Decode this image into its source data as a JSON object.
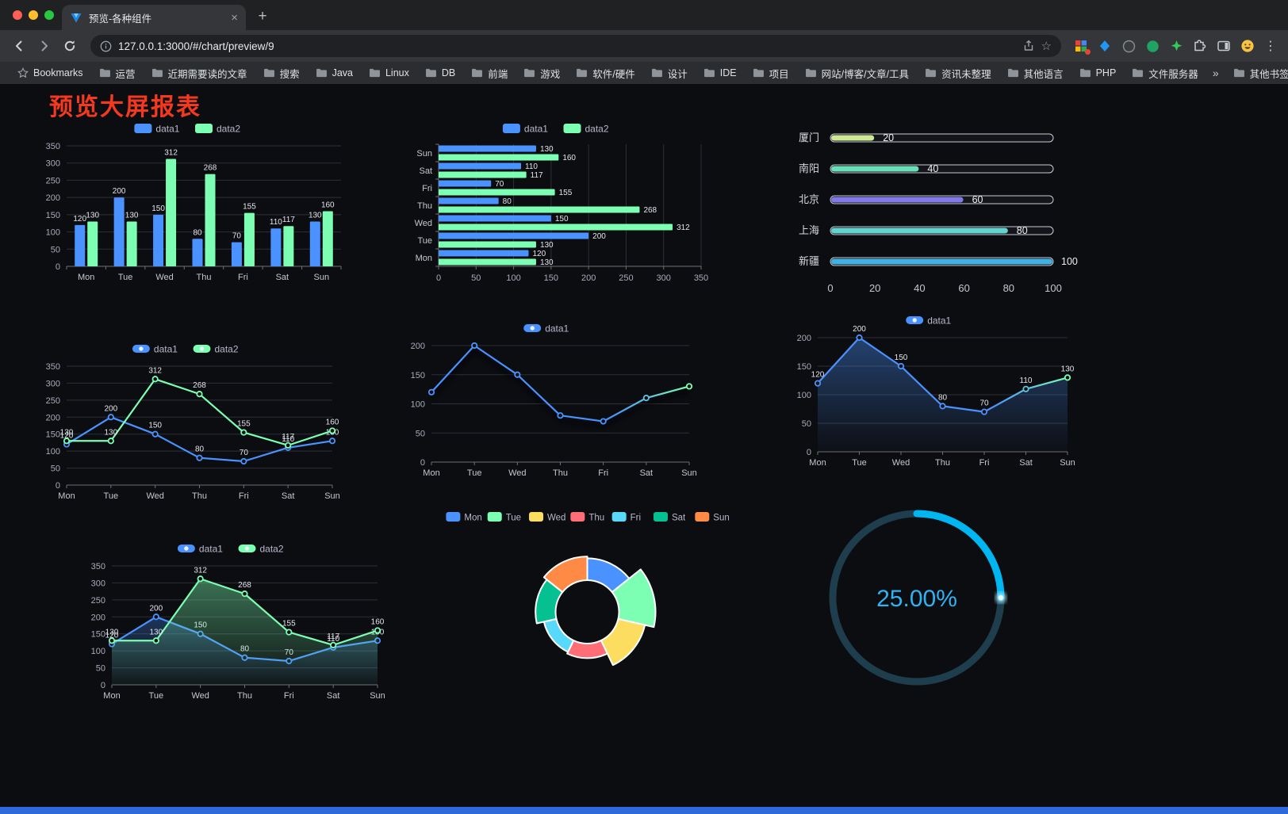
{
  "browser": {
    "tab_title": "预览-各种组件",
    "url": "127.0.0.1:3000/#/chart/preview/9",
    "icons": {
      "close": "×",
      "new_tab": "+",
      "menu": "⋮",
      "star": "☆",
      "overflow_chevron": "»"
    },
    "bookmarks": {
      "items": [
        {
          "label": "Bookmarks",
          "icon": "star-icon"
        },
        {
          "label": "运营",
          "icon": "folder-icon"
        },
        {
          "label": "近期需要读的文章",
          "icon": "folder-icon"
        },
        {
          "label": "搜索",
          "icon": "folder-icon"
        },
        {
          "label": "Java",
          "icon": "folder-icon"
        },
        {
          "label": "Linux",
          "icon": "folder-icon"
        },
        {
          "label": "DB",
          "icon": "folder-icon"
        },
        {
          "label": "前端",
          "icon": "folder-icon"
        },
        {
          "label": "游戏",
          "icon": "folder-icon"
        },
        {
          "label": "软件/硬件",
          "icon": "folder-icon"
        },
        {
          "label": "设计",
          "icon": "folder-icon"
        },
        {
          "label": "IDE",
          "icon": "folder-icon"
        },
        {
          "label": "项目",
          "icon": "folder-icon"
        },
        {
          "label": "网站/博客/文章/工具",
          "icon": "folder-icon"
        },
        {
          "label": "资讯未整理",
          "icon": "folder-icon"
        },
        {
          "label": "其他语言",
          "icon": "folder-icon"
        },
        {
          "label": "PHP",
          "icon": "folder-icon"
        },
        {
          "label": "文件服务器",
          "icon": "folder-icon"
        }
      ],
      "other": "其他书签"
    }
  },
  "page": {
    "title": "预览大屏报表",
    "title_color": "#f5391f",
    "background": "#0c0d10",
    "bottom_bar_color": "#2e6ad9"
  },
  "palette": {
    "blue": "#4992ff",
    "green": "#7cffb2",
    "yellow": "#fddd60",
    "red": "#ff6e76",
    "light_blue": "#58d9f9",
    "teal": "#05c091",
    "orange": "#ff8a45"
  },
  "chart_data": [
    {
      "id": "bar-grouped",
      "type": "bar",
      "categories": [
        "Mon",
        "Tue",
        "Wed",
        "Thu",
        "Fri",
        "Sat",
        "Sun"
      ],
      "series": [
        {
          "name": "data1",
          "color": "#4992ff",
          "values": [
            120,
            200,
            150,
            80,
            70,
            110,
            130
          ]
        },
        {
          "name": "data2",
          "color": "#7cffb2",
          "values": [
            130,
            130,
            312,
            268,
            155,
            117,
            160
          ]
        }
      ],
      "ylim": [
        0,
        350
      ],
      "ystep": 50,
      "legend": true,
      "bar_labels": true
    },
    {
      "id": "bar-horizontal",
      "type": "bar-h",
      "categories": [
        "Mon",
        "Tue",
        "Wed",
        "Thu",
        "Fri",
        "Sat",
        "Sun"
      ],
      "series": [
        {
          "name": "data1",
          "color": "#4992ff",
          "values": [
            120,
            200,
            150,
            80,
            70,
            110,
            130
          ]
        },
        {
          "name": "data2",
          "color": "#7cffb2",
          "values": [
            130,
            130,
            312,
            268,
            155,
            117,
            160
          ]
        }
      ],
      "xlim": [
        0,
        350
      ],
      "xstep": 50,
      "legend": true,
      "bar_labels": true
    },
    {
      "id": "progress-bars",
      "type": "progress",
      "max": 100,
      "axis_ticks": [
        0,
        20,
        40,
        60,
        80,
        100
      ],
      "items": [
        {
          "label": "厦门",
          "value": 20,
          "color": "#cdе792"
        },
        {
          "label": "南阳",
          "value": 40,
          "color": "#67e0b7"
        },
        {
          "label": "北京",
          "value": 60,
          "color": "#8378ea"
        },
        {
          "label": "上海",
          "value": 80,
          "color": "#61d4d0"
        },
        {
          "label": "新疆",
          "value": 100,
          "color": "#3fb1e3"
        }
      ]
    },
    {
      "id": "line-two-series",
      "type": "line",
      "categories": [
        "Mon",
        "Tue",
        "Wed",
        "Thu",
        "Fri",
        "Sat",
        "Sun"
      ],
      "ylim": [
        0,
        350
      ],
      "ystep": 50,
      "series": [
        {
          "name": "data1",
          "color": "#4992ff",
          "values": [
            120,
            200,
            150,
            80,
            70,
            110,
            130
          ],
          "labels": true
        },
        {
          "name": "data2",
          "color": "#7cffb2",
          "values": [
            130,
            130,
            312,
            268,
            155,
            117,
            160
          ],
          "labels": true
        }
      ]
    },
    {
      "id": "line-gradient",
      "type": "line",
      "categories": [
        "Mon",
        "Tue",
        "Wed",
        "Thu",
        "Fri",
        "Sat",
        "Sun"
      ],
      "ylim": [
        0,
        200
      ],
      "ystep": 50,
      "series": [
        {
          "name": "data1",
          "gradient": [
            "#4992ff",
            "#7cffb2"
          ],
          "values": [
            120,
            200,
            150,
            80,
            70,
            110,
            130
          ],
          "labels": false,
          "shadow": true
        }
      ]
    },
    {
      "id": "line-area",
      "type": "line",
      "categories": [
        "Mon",
        "Tue",
        "Wed",
        "Thu",
        "Fri",
        "Sat",
        "Sun"
      ],
      "ylim": [
        0,
        200
      ],
      "ystep": 50,
      "series": [
        {
          "name": "data1",
          "gradient": [
            "#4992ff",
            "#7cffb2"
          ],
          "area": [
            "rgba(73,146,255,0.40)",
            "rgba(73,146,255,0.02)"
          ],
          "values": [
            120,
            200,
            150,
            80,
            70,
            110,
            130
          ],
          "labels": true
        }
      ]
    },
    {
      "id": "line-area-two",
      "type": "line",
      "categories": [
        "Mon",
        "Tue",
        "Wed",
        "Thu",
        "Fri",
        "Sat",
        "Sun"
      ],
      "ylim": [
        0,
        350
      ],
      "ystep": 50,
      "series": [
        {
          "name": "data1",
          "color": "#4992ff",
          "area": [
            "rgba(73,146,255,0.30)",
            "rgba(73,146,255,0.02)"
          ],
          "values": [
            120,
            200,
            150,
            80,
            70,
            110,
            130
          ],
          "labels": true
        },
        {
          "name": "data2",
          "color": "#7cffb2",
          "area": [
            "rgba(124,255,178,0.42)",
            "rgba(124,255,178,0.03)"
          ],
          "values": [
            130,
            130,
            312,
            268,
            155,
            117,
            160
          ],
          "labels": true
        }
      ]
    },
    {
      "id": "rose-donut",
      "type": "rose",
      "categories": [
        "Mon",
        "Tue",
        "Wed",
        "Thu",
        "Fri",
        "Sat",
        "Sun"
      ],
      "values": [
        120,
        200,
        150,
        80,
        70,
        110,
        130
      ],
      "colors": [
        "#4992ff",
        "#7cffb2",
        "#fddd60",
        "#ff6e76",
        "#58d9f9",
        "#05c091",
        "#ff8a45"
      ],
      "max": 200
    },
    {
      "id": "gauge-percent",
      "type": "gauge",
      "value": 25,
      "label": "25.00%",
      "color": "#00b6f0",
      "track_color": "#1e3d4d"
    }
  ]
}
